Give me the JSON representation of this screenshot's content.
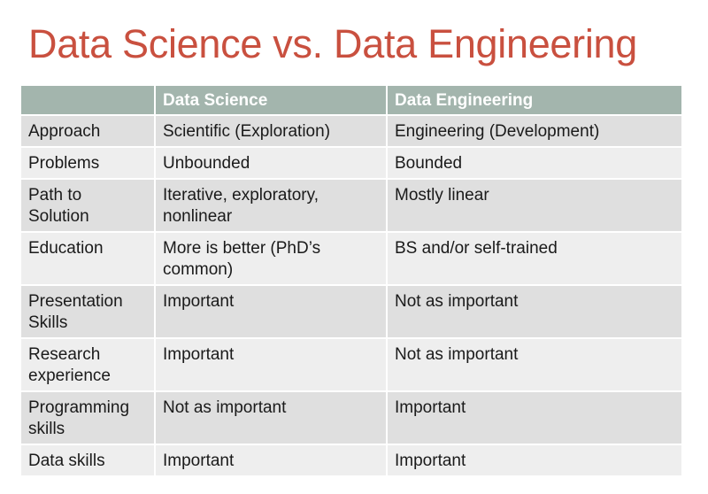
{
  "title": "Data Science vs. Data Engineering",
  "table": {
    "headers": [
      "",
      "Data Science",
      "Data Engineering"
    ],
    "rows": [
      {
        "label": "Approach",
        "science": "Scientific (Exploration)",
        "engineering": "Engineering (Development)"
      },
      {
        "label": "Problems",
        "science": "Unbounded",
        "engineering": "Bounded"
      },
      {
        "label": "Path to Solution",
        "science": "Iterative, exploratory, nonlinear",
        "engineering": "Mostly linear"
      },
      {
        "label": "Education",
        "science": "More is better (PhD’s common)",
        "engineering": "BS and/or self-trained"
      },
      {
        "label": "Presentation Skills",
        "science": "Important",
        "engineering": "Not as important"
      },
      {
        "label": "Research experience",
        "science": "Important",
        "engineering": "Not as important"
      },
      {
        "label": "Programming skills",
        "science": "Not as important",
        "engineering": "Important"
      },
      {
        "label": "Data skills",
        "science": "Important",
        "engineering": "Important"
      }
    ]
  },
  "colors": {
    "title": "#c9503f",
    "header_bg": "#a3b5ad",
    "row_dark": "#dfdfdf",
    "row_light": "#eeeeee"
  }
}
